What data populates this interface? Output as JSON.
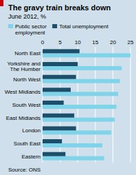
{
  "chart_data": {
    "type": "bar",
    "orientation": "horizontal",
    "title": "The gravy train breaks down",
    "subtitle": "June 2012, %",
    "source": "Source: ONS",
    "categories": [
      "North East",
      "Yorkshire and\nThe Humber",
      "North West",
      "West Midlands",
      "South West",
      "East Midlands",
      "London",
      "South East",
      "Eastern"
    ],
    "series": [
      {
        "name": "Public sector\nemployment",
        "color": "#7fd4ea",
        "values": [
          25.0,
          22.5,
          22.0,
          21.5,
          21.0,
          20.5,
          19.5,
          17.0,
          17.5
        ]
      },
      {
        "name": "Total unemployment",
        "color": "#1c4f6b",
        "values": [
          10.5,
          10.0,
          9.5,
          8.0,
          6.0,
          9.0,
          9.5,
          5.5,
          6.5
        ]
      }
    ],
    "xlim": [
      0,
      25
    ],
    "xticks": [
      0,
      5,
      10,
      15,
      20,
      25
    ],
    "grid": true,
    "legend": "top-left"
  }
}
